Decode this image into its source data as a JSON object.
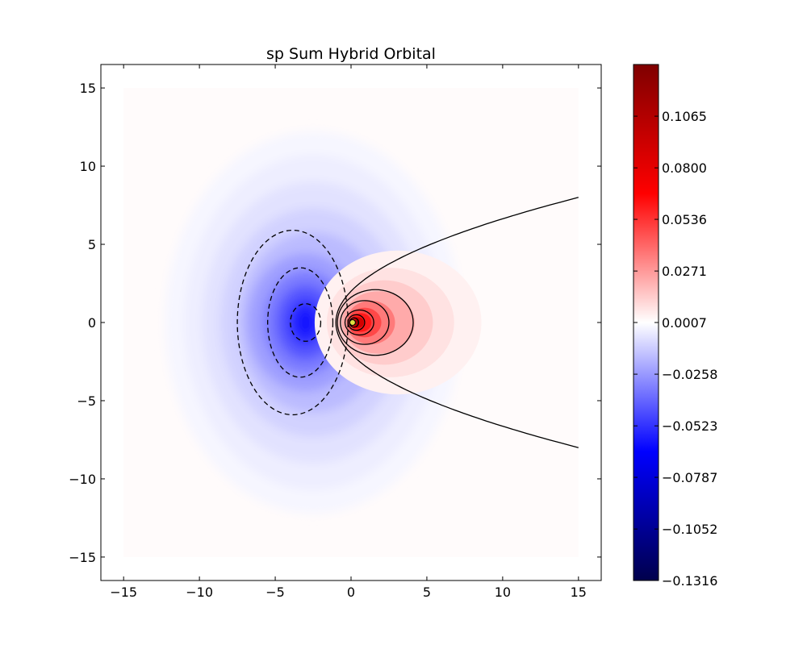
{
  "chart_data": {
    "type": "heatmap",
    "subtype": "filled-contour",
    "title": "sp Sum Hybrid Orbital",
    "xlabel": "",
    "ylabel": "",
    "xlim": [
      -16.5,
      16.5
    ],
    "ylim": [
      -16.5,
      16.5
    ],
    "x_ticks": [
      -15,
      -10,
      -5,
      0,
      5,
      10,
      15
    ],
    "y_ticks": [
      -15,
      -10,
      -5,
      0,
      5,
      10,
      15
    ],
    "x_tick_labels": [
      "−15",
      "−10",
      "−5",
      "0",
      "5",
      "10",
      "15"
    ],
    "y_tick_labels": [
      "−15",
      "−10",
      "−5",
      "0",
      "5",
      "10",
      "15"
    ],
    "grid": false,
    "data_extent": {
      "x": [
        -15,
        15
      ],
      "y": [
        -15,
        15
      ]
    },
    "colormap": "seismic",
    "colormap_stops": [
      "#00004c",
      "#0000ff",
      "#ffffff",
      "#ff0000",
      "#7f0000"
    ],
    "colorbar": {
      "range": [
        -0.1316,
        0.133
      ],
      "ticks": [
        -0.1316,
        -0.1052,
        -0.0787,
        -0.0523,
        -0.0258,
        0.0007,
        0.0271,
        0.0536,
        0.08,
        0.1065
      ],
      "tick_labels": [
        "−0.1316",
        "−0.1052",
        "−0.0787",
        "−0.0523",
        "−0.0258",
        "0.0007",
        "0.0271",
        "0.0536",
        "0.0800",
        "0.1065"
      ]
    },
    "features": {
      "negative_lobe_center": [
        -3,
        0
      ],
      "positive_lobe_center": [
        0.3,
        0
      ],
      "nodal_parabola": {
        "vertex_x": -1,
        "passes_through": [
          [
            15,
            8
          ],
          [
            15,
            -8
          ]
        ]
      },
      "negative_contours": [
        {
          "x": [
            -4.0,
            -2.0
          ],
          "y": [
            -1.2,
            1.2
          ]
        },
        {
          "x": [
            -5.5,
            -1.2
          ],
          "y": [
            -3.5,
            3.5
          ]
        },
        {
          "x": [
            -7.5,
            -0.2
          ],
          "y": [
            -5.9,
            5.9
          ]
        }
      ],
      "positive_contours": [
        {
          "x": [
            -0.9,
            4.1
          ],
          "y": [
            -2.1,
            2.1
          ]
        },
        {
          "x": [
            -0.7,
            2.5
          ],
          "y": [
            -1.4,
            1.4
          ]
        },
        {
          "x": [
            -0.4,
            1.5
          ],
          "y": [
            -0.8,
            0.8
          ]
        },
        {
          "x": [
            -0.2,
            0.9
          ],
          "y": [
            -0.5,
            0.5
          ]
        },
        {
          "x": [
            -0.1,
            0.5
          ],
          "y": [
            -0.3,
            0.3
          ]
        }
      ],
      "nucleus_marker": [
        0.1,
        0
      ]
    }
  }
}
